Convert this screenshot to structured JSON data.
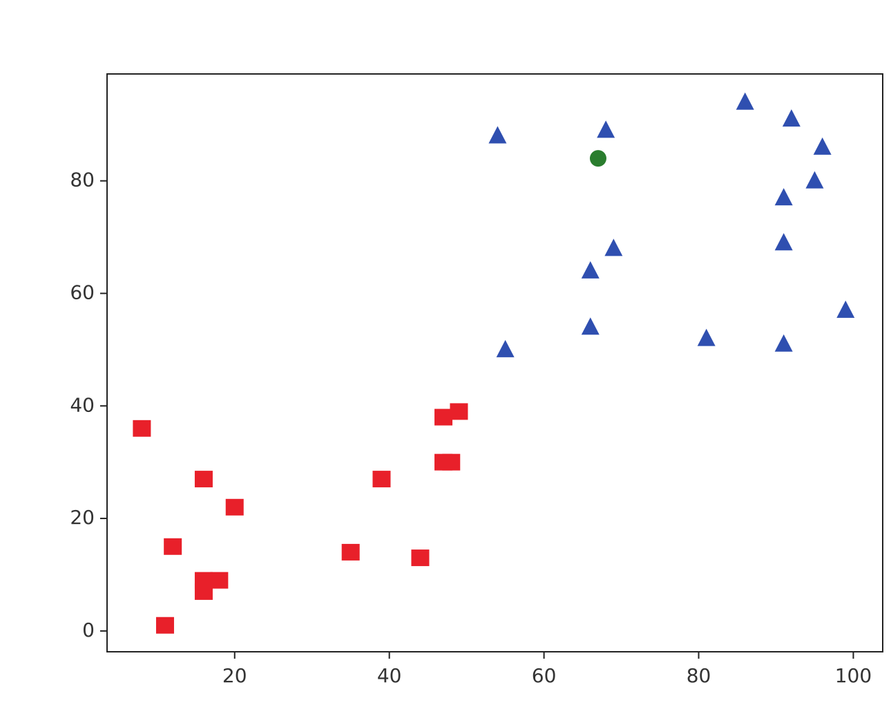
{
  "chart_data": {
    "type": "scatter",
    "xlim": [
      3.5,
      103.8
    ],
    "ylim": [
      -3.7,
      99
    ],
    "xticks": [
      20,
      40,
      60,
      80,
      100
    ],
    "yticks": [
      0,
      20,
      40,
      60,
      80
    ],
    "grid": false,
    "series": [
      {
        "color": "#e8202a",
        "marker": "square",
        "x": [
          8,
          16,
          20,
          12,
          16,
          18,
          16,
          11,
          35,
          39,
          44,
          47,
          49,
          47,
          48
        ],
        "values": [
          36,
          27,
          22,
          15,
          9,
          9,
          7,
          1,
          14,
          27,
          13,
          38,
          39,
          30,
          30
        ]
      },
      {
        "color": "#2f4fb0",
        "marker": "triangle",
        "x": [
          54,
          68,
          86,
          92,
          96,
          95,
          91,
          69,
          91,
          66,
          99,
          55,
          66,
          81,
          91
        ],
        "values": [
          88,
          89,
          94,
          91,
          86,
          80,
          77,
          68,
          69,
          64,
          57,
          50,
          54,
          52,
          51
        ]
      },
      {
        "color": "#2a7d2e",
        "marker": "circle",
        "x": [
          67
        ],
        "values": [
          84
        ]
      }
    ]
  }
}
